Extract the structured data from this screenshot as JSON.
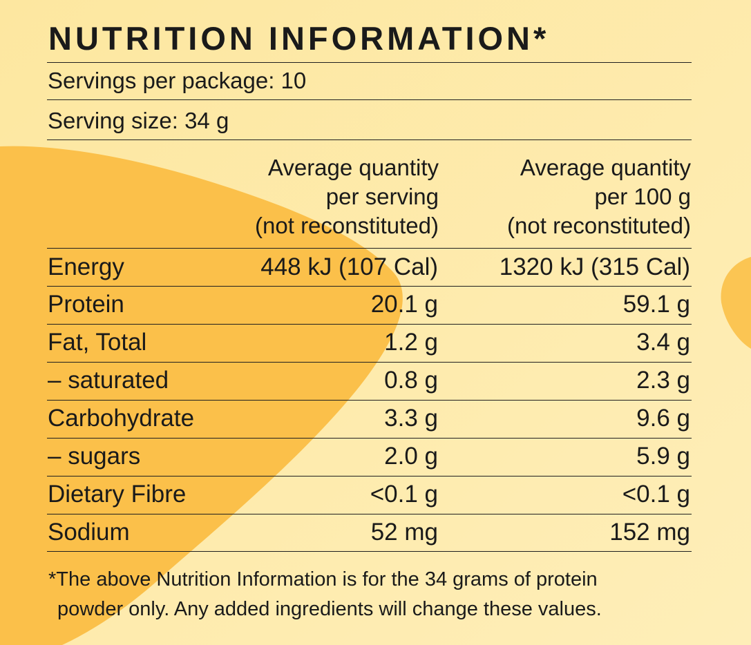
{
  "title": "NUTRITION INFORMATION*",
  "servings_per_package": "Servings per package: 10",
  "serving_size": "Serving size: 34 g",
  "columns": [
    {
      "lines": [
        "Average quantity",
        "per serving",
        "(not reconstituted)"
      ]
    },
    {
      "lines": [
        "Average quantity",
        "per 100 g",
        "(not reconstituted)"
      ]
    }
  ],
  "rows": [
    {
      "label": "Energy",
      "per_serving": "448 kJ (107 Cal)",
      "per_100g": "1320 kJ (315 Cal)"
    },
    {
      "label": "Protein",
      "per_serving": "20.1 g",
      "per_100g": "59.1 g"
    },
    {
      "label": "Fat, Total",
      "per_serving": "1.2 g",
      "per_100g": "3.4 g"
    },
    {
      "label": "– saturated",
      "per_serving": "0.8 g",
      "per_100g": "2.3 g"
    },
    {
      "label": "Carbohydrate",
      "per_serving": "3.3 g",
      "per_100g": "9.6 g"
    },
    {
      "label": "– sugars",
      "per_serving": "2.0 g",
      "per_100g": "5.9 g"
    },
    {
      "label": "Dietary Fibre",
      "per_serving": "<0.1 g",
      "per_100g": "<0.1 g"
    },
    {
      "label": "Sodium",
      "per_serving": "52 mg",
      "per_100g": "152 mg"
    }
  ],
  "footnote": {
    "line1": "*The above Nutrition Information is for the 34 grams of protein",
    "line2": "powder only. Any added ingredients will change these values."
  },
  "colors": {
    "background": "#fde9a6",
    "blob": "#fbc04a",
    "text": "#1a1a1a"
  }
}
